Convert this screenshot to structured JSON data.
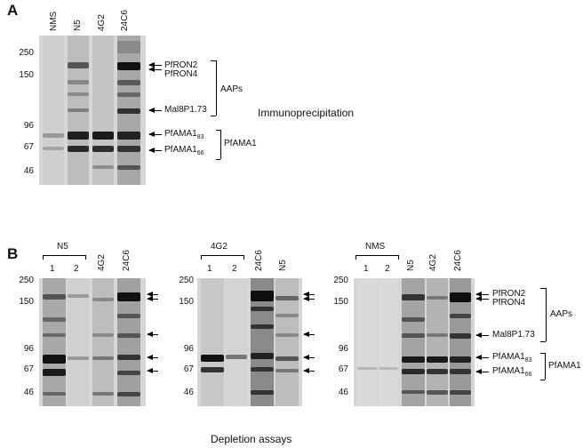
{
  "panelA": {
    "letter": "A",
    "lanes": [
      "NMS",
      "N5",
      "4G2",
      "24C6"
    ],
    "mw": [
      "250",
      "150",
      "96",
      "67",
      "46"
    ],
    "proteins": {
      "ron2": "PfRON2",
      "ron4": "PfRON4",
      "mal": "Mal8P1.73",
      "ama83_base": "PfAMA1",
      "ama83_sub": "83",
      "ama66_base": "PfAMA1",
      "ama66_sub": "66"
    },
    "groups": {
      "aaps": "AAPs",
      "pfama1": "PfAMA1"
    },
    "caption": "Immunoprecipitation"
  },
  "panelB": {
    "letter": "B",
    "gel1": {
      "bracket": "N5",
      "lanes": [
        "1",
        "2",
        "4G2",
        "24C6"
      ]
    },
    "gel2": {
      "bracket": "4G2",
      "lanes": [
        "1",
        "2",
        "24C6",
        "N5"
      ]
    },
    "gel3": {
      "bracket": "NMS",
      "lanes": [
        "1",
        "2",
        "N5",
        "4G2",
        "24C6"
      ]
    },
    "mw": [
      "250",
      "150",
      "96",
      "67",
      "46"
    ],
    "proteins": {
      "ron2": "PfRON2",
      "ron4": "PfRON4",
      "mal": "Mal8P1.73",
      "ama83_base": "PfAMA1",
      "ama83_sub": "83",
      "ama66_base": "PfAMA1",
      "ama66_sub": "66"
    },
    "groups": {
      "aaps": "AAPs",
      "pfama1": "PfAMA1"
    },
    "caption": "Depletion assays"
  }
}
